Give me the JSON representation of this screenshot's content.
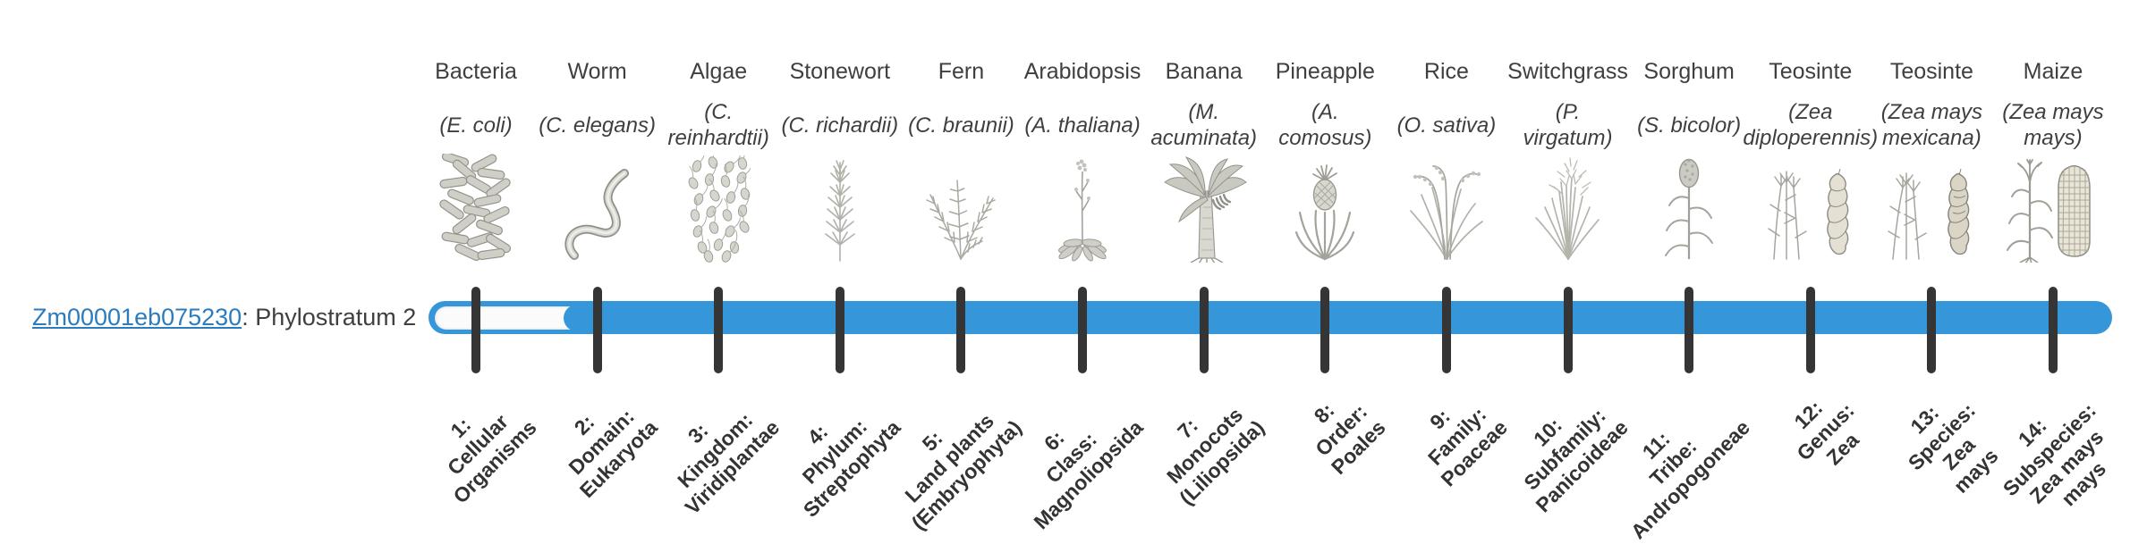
{
  "gene": {
    "id": "Zm00001eb075230",
    "suffix": ": Phylostratum 2",
    "link_color": "#2b7cbe"
  },
  "timeline": {
    "phylostratum": 2,
    "total_strata": 14,
    "bar_color": "#3596d9",
    "track_color": "#fbfbfb",
    "tick_color": "#353535"
  },
  "columns": [
    {
      "name": "Bacteria",
      "species": "(E. coli)",
      "icon": "bacteria-icon",
      "stratum": "1:\nCellular\nOrganisms"
    },
    {
      "name": "Worm",
      "species": "(C. elegans)",
      "icon": "worm-icon",
      "stratum": "2:\nDomain:\nEukaryota"
    },
    {
      "name": "Algae",
      "species": "(C.\nreinhardtii)",
      "icon": "algae-icon",
      "stratum": "3:\nKingdom:\nViridiplantae"
    },
    {
      "name": "Stonewort",
      "species": "(C. richardii)",
      "icon": "stonewort-icon",
      "stratum": "4:\nPhylum:\nStreptophyta"
    },
    {
      "name": "Fern",
      "species": "(C. braunii)",
      "icon": "fern-icon",
      "stratum": "5:\nLand plants\n(Embryophyta)"
    },
    {
      "name": "Arabidopsis",
      "species": "(A. thaliana)",
      "icon": "arabidopsis-icon",
      "stratum": "6:\nClass:\nMagnoliopsida"
    },
    {
      "name": "Banana",
      "species": "(M.\nacuminata)",
      "icon": "banana-icon",
      "stratum": "7:\nMonocots\n(Liliopsida)"
    },
    {
      "name": "Pineapple",
      "species": "(A.\ncomosus)",
      "icon": "pineapple-icon",
      "stratum": "8:\nOrder:\nPoales"
    },
    {
      "name": "Rice",
      "species": "(O. sativa)",
      "icon": "rice-icon",
      "stratum": "9:\nFamily:\nPoaceae"
    },
    {
      "name": "Switchgrass",
      "species": "(P.\nvirgatum)",
      "icon": "switchgrass-icon",
      "stratum": "10:\nSubfamily:\nPanicoideae"
    },
    {
      "name": "Sorghum",
      "species": "(S. bicolor)",
      "icon": "sorghum-icon",
      "stratum": "11:\nTribe:\nAndropogoneae"
    },
    {
      "name": "Teosinte",
      "species": "(Zea\ndiploperennis)",
      "icon": "teosinte-diploperennis-icon",
      "stratum": "12:\nGenus:\nZea"
    },
    {
      "name": "Teosinte",
      "species": "(Zea mays\nmexicana)",
      "icon": "teosinte-mexicana-icon",
      "stratum": "13:\nSpecies:\nZea\nmays"
    },
    {
      "name": "Maize",
      "species": "(Zea mays\nmays)",
      "icon": "maize-icon",
      "stratum": "14:\nSubspecies:\nZea mays\nmays"
    }
  ]
}
